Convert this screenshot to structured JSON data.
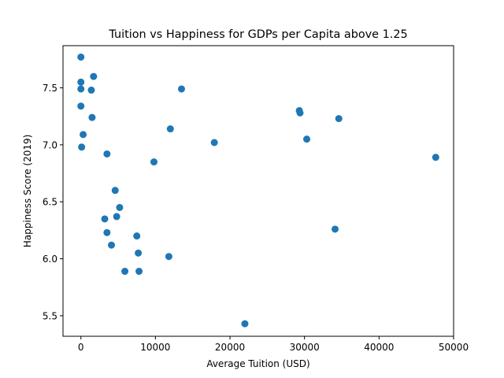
{
  "chart_data": {
    "type": "scatter",
    "title": "Tuition vs Happiness for GDPs per Capita above 1.25",
    "xlabel": "Average Tuition (USD)",
    "ylabel": "Happiness Score (2019)",
    "xlim": [
      -2400,
      50000
    ],
    "ylim": [
      5.32,
      7.87
    ],
    "xticks": [
      0,
      10000,
      20000,
      30000,
      40000,
      50000
    ],
    "xtick_labels": [
      "0",
      "10000",
      "20000",
      "30000",
      "40000",
      "50000"
    ],
    "yticks": [
      5.5,
      6.0,
      6.5,
      7.0,
      7.5
    ],
    "ytick_labels": [
      "5.5",
      "6.0",
      "6.5",
      "7.0",
      "7.5"
    ],
    "grid": false,
    "marker_color": "#1f77b4",
    "points": [
      {
        "x": 0,
        "y": 7.77
      },
      {
        "x": 0,
        "y": 7.55
      },
      {
        "x": 0,
        "y": 7.49
      },
      {
        "x": 0,
        "y": 7.34
      },
      {
        "x": 100,
        "y": 6.98
      },
      {
        "x": 300,
        "y": 7.09
      },
      {
        "x": 1400,
        "y": 7.48
      },
      {
        "x": 1500,
        "y": 7.24
      },
      {
        "x": 1700,
        "y": 7.6
      },
      {
        "x": 3200,
        "y": 6.35
      },
      {
        "x": 3500,
        "y": 6.92
      },
      {
        "x": 3500,
        "y": 6.23
      },
      {
        "x": 4100,
        "y": 6.12
      },
      {
        "x": 4600,
        "y": 6.6
      },
      {
        "x": 4800,
        "y": 6.37
      },
      {
        "x": 5200,
        "y": 6.45
      },
      {
        "x": 5900,
        "y": 5.89
      },
      {
        "x": 7500,
        "y": 6.2
      },
      {
        "x": 7700,
        "y": 6.05
      },
      {
        "x": 7800,
        "y": 5.89
      },
      {
        "x": 9800,
        "y": 6.85
      },
      {
        "x": 11800,
        "y": 6.02
      },
      {
        "x": 12000,
        "y": 7.14
      },
      {
        "x": 13500,
        "y": 7.49
      },
      {
        "x": 17900,
        "y": 7.02
      },
      {
        "x": 22000,
        "y": 5.43
      },
      {
        "x": 29300,
        "y": 7.3
      },
      {
        "x": 29400,
        "y": 7.28
      },
      {
        "x": 30300,
        "y": 7.05
      },
      {
        "x": 34100,
        "y": 6.26
      },
      {
        "x": 34600,
        "y": 7.23
      },
      {
        "x": 47600,
        "y": 6.89
      }
    ]
  }
}
